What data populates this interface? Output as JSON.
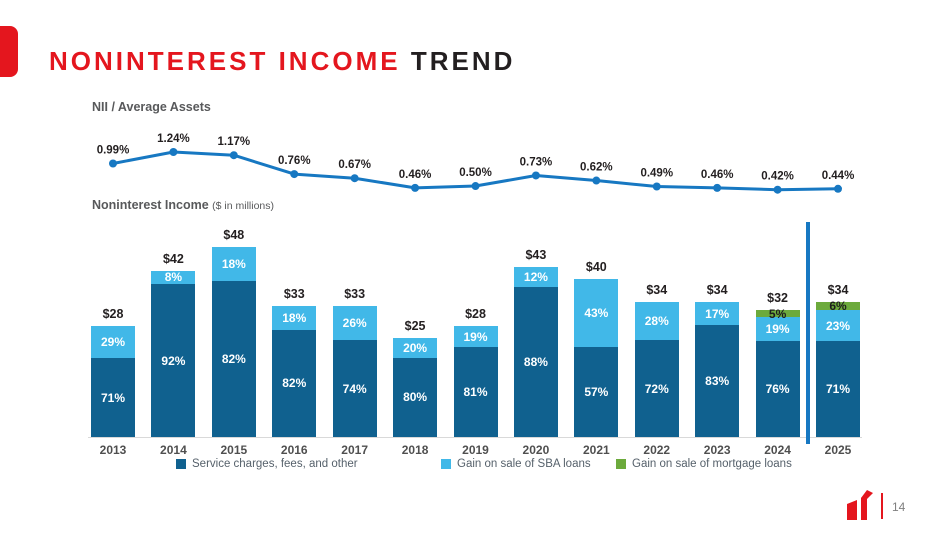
{
  "slide": {
    "title_primary": "NONINTEREST INCOME",
    "title_secondary": "TREND",
    "page_number": "14"
  },
  "colors": {
    "accent_red": "#e4161e",
    "line_blue": "#1778c2",
    "dark_blue": "#10618f",
    "light_blue": "#41b8e8",
    "green": "#6caa3c",
    "axis_gray": "#d9d9d9"
  },
  "chart_data": [
    {
      "type": "line",
      "title": "NII / Average Assets",
      "x": [
        "2013",
        "2014",
        "2015",
        "2016",
        "2017",
        "2018",
        "2019",
        "2020",
        "2021",
        "2022",
        "2023",
        "2024",
        "2025"
      ],
      "values": [
        0.99,
        1.24,
        1.17,
        0.76,
        0.67,
        0.46,
        0.5,
        0.73,
        0.62,
        0.49,
        0.46,
        0.42,
        0.44
      ],
      "labels": [
        "0.99%",
        "1.24%",
        "1.17%",
        "0.76%",
        "0.67%",
        "0.46%",
        "0.50%",
        "0.73%",
        "0.62%",
        "0.49%",
        "0.46%",
        "0.42%",
        "0.44%"
      ],
      "line_color": "#1778c2",
      "grid": false,
      "axis_labels_hidden": true
    },
    {
      "type": "bar",
      "stacked": true,
      "title": "Noninterest Income",
      "subtitle": "($ in millions)",
      "categories": [
        "2013",
        "2014",
        "2015",
        "2016",
        "2017",
        "2018",
        "2019",
        "2020",
        "2021",
        "2022",
        "2023",
        "2024",
        "2025"
      ],
      "totals": [
        28,
        42,
        48,
        33,
        33,
        25,
        28,
        43,
        40,
        34,
        34,
        32,
        34
      ],
      "total_labels": [
        "$28",
        "$42",
        "$48",
        "$33",
        "$33",
        "$25",
        "$28",
        "$43",
        "$40",
        "$34",
        "$34",
        "$32",
        "$34"
      ],
      "series": [
        {
          "name": "Service charges, fees, and other",
          "color": "#10618f",
          "label_color": "#ffffff",
          "pct": [
            71,
            92,
            82,
            82,
            74,
            80,
            81,
            88,
            57,
            72,
            83,
            76,
            71
          ]
        },
        {
          "name": "Gain on sale of SBA loans",
          "color": "#41b8e8",
          "label_color": "#ffffff",
          "pct": [
            29,
            8,
            18,
            18,
            26,
            20,
            19,
            12,
            43,
            28,
            17,
            19,
            23
          ]
        },
        {
          "name": "Gain on sale of mortgage loans",
          "color": "#6caa3c",
          "label_color": "#1d1d1d",
          "pct": [
            0,
            0,
            0,
            0,
            0,
            0,
            0,
            0,
            0,
            0,
            0,
            5,
            6
          ]
        }
      ],
      "divider_between": [
        "2024",
        "2025"
      ],
      "legend_position": "bottom"
    }
  ],
  "legend": {
    "items": [
      {
        "label": "Service charges, fees, and other",
        "color": "#10618f"
      },
      {
        "label": "Gain on sale of SBA loans",
        "color": "#41b8e8"
      },
      {
        "label": "Gain on sale of mortgage loans",
        "color": "#6caa3c"
      }
    ]
  }
}
